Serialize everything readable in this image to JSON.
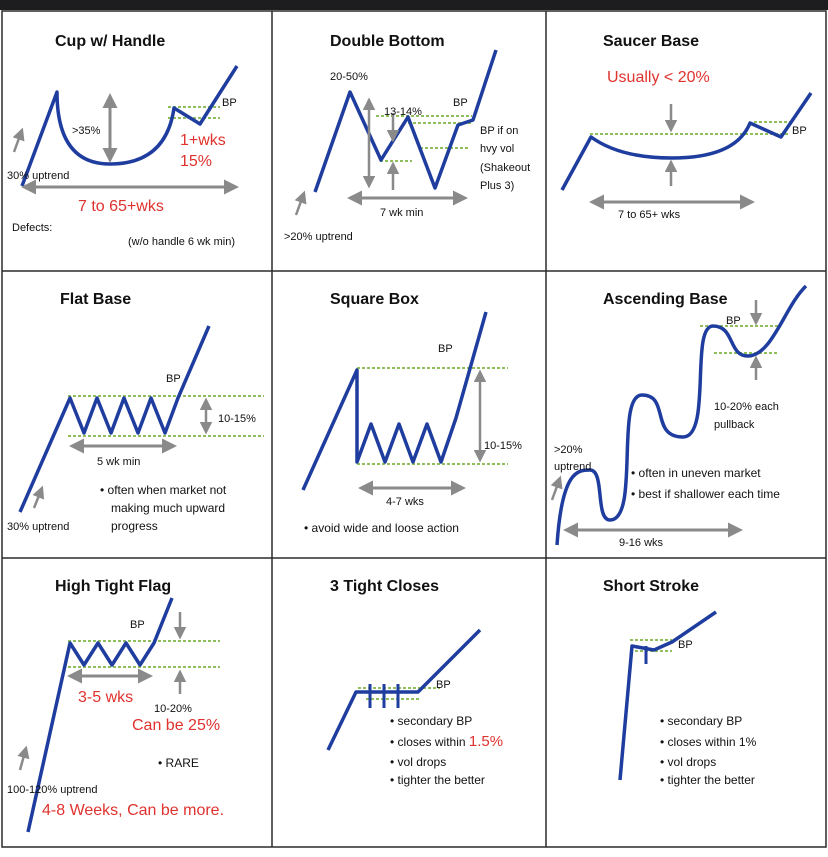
{
  "panels": {
    "cup": {
      "title": "Cup w/ Handle",
      "depth": ">35%",
      "bp": "BP",
      "wks": "1+wks",
      "pct": "15%",
      "uptrend": "30% uptrend",
      "duration": "7 to 65+wks",
      "defects": "Defects:",
      "handle_note": "(w/o handle 6 wk min)"
    },
    "double": {
      "title": "Double Bottom",
      "depth": "20-50%",
      "bp": "BP",
      "mid": "13-14%",
      "bp_note_1": "BP if on",
      "bp_note_2": "hvy vol",
      "bp_note_3": "(Shakeout",
      "bp_note_4": "Plus 3)",
      "duration": "7 wk min",
      "uptrend": ">20% uptrend"
    },
    "saucer": {
      "title": "Saucer Base",
      "depth": "Usually < 20%",
      "bp": "BP",
      "duration": "7 to 65+ wks"
    },
    "flat": {
      "title": "Flat Base",
      "bp": "BP",
      "depth": "10-15%",
      "duration": "5 wk min",
      "note_1": "• often when market not",
      "note_2": "making much upward",
      "note_3": "progress",
      "uptrend": "30% uptrend"
    },
    "square": {
      "title": "Square Box",
      "bp": "BP",
      "depth": "10-15%",
      "duration": "4-7 wks",
      "note": "• avoid wide and loose action"
    },
    "ascending": {
      "title": "Ascending Base",
      "bp": "BP",
      "pullback_1": "10-20% each",
      "pullback_2": "pullback",
      "uptrend_1": ">20%",
      "uptrend_2": "uptrend",
      "note_1": "• often in uneven market",
      "note_2": "• best if shallower each time",
      "duration": "9-16 wks"
    },
    "htf": {
      "title": "High Tight Flag",
      "bp": "BP",
      "duration": "3-5 wks",
      "depth": "10-20%",
      "depth_alt": "Can be 25%",
      "rare": "• RARE",
      "uptrend": "100-120% uptrend",
      "weeks": "4-8 Weeks, Can be more."
    },
    "closes": {
      "title": "3 Tight Closes",
      "bp": "BP",
      "note_1": "• secondary BP",
      "note_2": "• closes within ",
      "note_2_red": "1.5%",
      "note_3": "• vol drops",
      "note_4": "• tighter the better"
    },
    "stroke": {
      "title": "Short Stroke",
      "bp": "BP",
      "note_1": "• secondary BP",
      "note_2": "• closes within 1%",
      "note_3": "• vol drops",
      "note_4": "• tighter the better"
    }
  },
  "colors": {
    "pattern": "#1f3d9e",
    "pivot": "#8fbf5a",
    "arrow": "#8a8a8a",
    "emphasis": "#e0322e",
    "grid": "#2b2b2b"
  }
}
